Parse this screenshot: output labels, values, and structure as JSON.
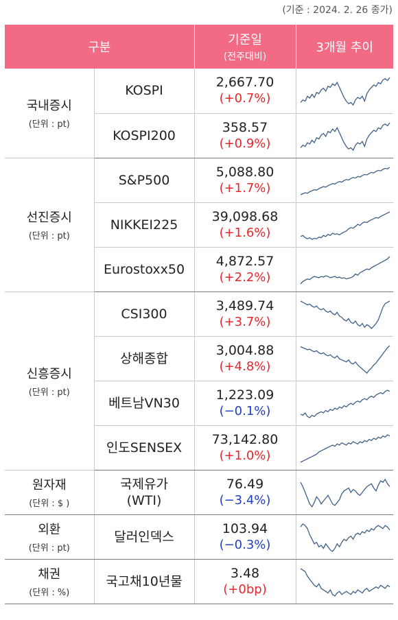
{
  "note": "(기준 : 2024. 2. 26 종가)",
  "header": {
    "category": "구분",
    "base_date": "기준일",
    "base_date_sub": "(전주대비)",
    "trend": "3개월 추이"
  },
  "colors": {
    "header_bg": "#f26a84",
    "up": "#e8262b",
    "down": "#1f3fc4",
    "sparkline": "#3e5f86"
  },
  "groups": [
    {
      "name": "국내증시",
      "unit": "(단위 : pt)",
      "rows": [
        {
          "name": "KOSPI",
          "value": "2,667.70",
          "change": "(+0.7%)",
          "direction": "up",
          "trend": [
            20,
            24,
            22,
            30,
            27,
            33,
            28,
            36,
            34,
            40,
            43,
            38,
            46,
            44,
            50,
            47,
            52,
            44,
            36,
            28,
            22,
            18,
            20,
            16,
            24,
            28,
            26,
            30,
            22,
            34,
            40,
            44,
            48,
            46,
            52,
            50,
            56,
            58,
            55,
            60
          ]
        },
        {
          "name": "KOSPI200",
          "value": "358.57",
          "change": "(+0.9%)",
          "direction": "up",
          "trend": [
            22,
            26,
            24,
            30,
            28,
            34,
            30,
            38,
            36,
            42,
            45,
            40,
            48,
            46,
            52,
            48,
            54,
            46,
            38,
            30,
            24,
            20,
            22,
            18,
            26,
            30,
            28,
            32,
            24,
            36,
            42,
            46,
            50,
            48,
            54,
            52,
            58,
            60,
            57,
            62
          ]
        }
      ]
    },
    {
      "name": "선진증시",
      "unit": "(단위 : pt)",
      "rows": [
        {
          "name": "S&P500",
          "value": "5,088.80",
          "change": "(+1.7%)",
          "direction": "up",
          "trend": [
            12,
            14,
            16,
            15,
            18,
            20,
            22,
            21,
            24,
            26,
            28,
            27,
            30,
            32,
            34,
            33,
            36,
            38,
            37,
            40,
            42,
            41,
            44,
            46,
            45,
            48,
            47,
            50,
            52,
            51,
            54,
            56,
            55,
            58,
            60,
            59,
            62,
            64,
            63,
            66
          ]
        },
        {
          "name": "NIKKEI225",
          "value": "39,098.68",
          "change": "(+1.6%)",
          "direction": "up",
          "trend": [
            20,
            22,
            18,
            16,
            18,
            15,
            17,
            16,
            19,
            18,
            22,
            20,
            24,
            22,
            26,
            24,
            25,
            23,
            26,
            28,
            30,
            34,
            36,
            35,
            38,
            42,
            40,
            44,
            46,
            45,
            48,
            50,
            52,
            54,
            53,
            56,
            58,
            60,
            62,
            64
          ]
        },
        {
          "name": "Eurostoxx50",
          "value": "4,872.57",
          "change": "(+2.2%)",
          "direction": "up",
          "trend": [
            18,
            22,
            24,
            26,
            25,
            28,
            30,
            29,
            28,
            30,
            29,
            31,
            30,
            28,
            29,
            30,
            28,
            29,
            27,
            28,
            26,
            27,
            28,
            30,
            34,
            32,
            36,
            38,
            40,
            42,
            41,
            44,
            46,
            48,
            50,
            52,
            54,
            56,
            58,
            62
          ]
        }
      ]
    },
    {
      "name": "신흥증시",
      "unit": "(단위 : pt)",
      "rows": [
        {
          "name": "CSI300",
          "value": "3,489.74",
          "change": "(+3.7%)",
          "direction": "up",
          "trend": [
            60,
            58,
            56,
            54,
            55,
            52,
            50,
            52,
            48,
            46,
            48,
            44,
            42,
            44,
            40,
            38,
            42,
            36,
            34,
            30,
            28,
            32,
            26,
            24,
            28,
            22,
            20,
            24,
            18,
            22,
            20,
            16,
            20,
            24,
            30,
            40,
            50,
            56,
            58,
            60
          ]
        },
        {
          "name": "상해종합",
          "value": "3,004.88",
          "change": "(+4.8%)",
          "direction": "up",
          "trend": [
            62,
            60,
            58,
            56,
            57,
            54,
            52,
            54,
            50,
            48,
            50,
            46,
            44,
            46,
            42,
            40,
            44,
            38,
            36,
            34,
            32,
            36,
            30,
            28,
            32,
            26,
            22,
            18,
            14,
            10,
            16,
            20,
            26,
            30,
            36,
            42,
            48,
            54,
            60,
            64
          ]
        },
        {
          "name": "베트남VN30",
          "value": "1,223.09",
          "change": "(−0.1%)",
          "direction": "down",
          "trend": [
            20,
            18,
            22,
            16,
            14,
            18,
            16,
            20,
            22,
            24,
            22,
            26,
            24,
            28,
            26,
            30,
            28,
            32,
            30,
            34,
            32,
            36,
            38,
            36,
            40,
            42,
            40,
            44,
            46,
            44,
            48,
            50,
            48,
            52,
            54,
            56,
            54,
            58,
            60,
            58
          ]
        },
        {
          "name": "인도SENSEX",
          "value": "73,142.80",
          "change": "(+1.0%)",
          "direction": "up",
          "trend": [
            16,
            18,
            20,
            22,
            24,
            26,
            28,
            30,
            34,
            36,
            38,
            40,
            42,
            44,
            46,
            44,
            48,
            46,
            50,
            48,
            46,
            50,
            48,
            52,
            50,
            48,
            52,
            50,
            54,
            52,
            56,
            54,
            58,
            56,
            60,
            58,
            62,
            60,
            64,
            62
          ]
        }
      ]
    },
    {
      "name": "원자재",
      "unit": "(단위 : $ )",
      "rows": [
        {
          "name": "국제유가\n(WTI)",
          "value": "76.49",
          "change": "(−3.4%)",
          "direction": "down",
          "trend": [
            60,
            54,
            46,
            38,
            30,
            26,
            32,
            40,
            36,
            30,
            34,
            38,
            42,
            36,
            30,
            28,
            32,
            36,
            44,
            48,
            50,
            52,
            46,
            50,
            48,
            44,
            42,
            46,
            50,
            54,
            56,
            58,
            52,
            48,
            56,
            62,
            60,
            64,
            58,
            54
          ]
        }
      ]
    },
    {
      "name": "외환",
      "unit": "(단위 : pt)",
      "rows": [
        {
          "name": "달러인덱스",
          "value": "103.94",
          "change": "(−0.3%)",
          "direction": "down",
          "trend": [
            56,
            60,
            58,
            54,
            46,
            40,
            34,
            36,
            30,
            32,
            28,
            34,
            30,
            26,
            24,
            28,
            34,
            30,
            36,
            40,
            38,
            42,
            44,
            40,
            46,
            48,
            46,
            50,
            48,
            52,
            50,
            54,
            52,
            56,
            58,
            56,
            54,
            58,
            56,
            52
          ]
        }
      ]
    },
    {
      "name": "채권",
      "unit": "(단위 : %)",
      "rows": [
        {
          "name": "국고채10년물",
          "value": "3.48",
          "change": "(+0bp)",
          "direction": "up",
          "trend": [
            60,
            58,
            56,
            50,
            46,
            42,
            38,
            36,
            40,
            34,
            32,
            30,
            28,
            32,
            26,
            24,
            28,
            30,
            26,
            28,
            30,
            28,
            26,
            30,
            28,
            32,
            30,
            28,
            32,
            34,
            30,
            32,
            34,
            36,
            34,
            38,
            36,
            34,
            38,
            36
          ]
        }
      ]
    }
  ]
}
